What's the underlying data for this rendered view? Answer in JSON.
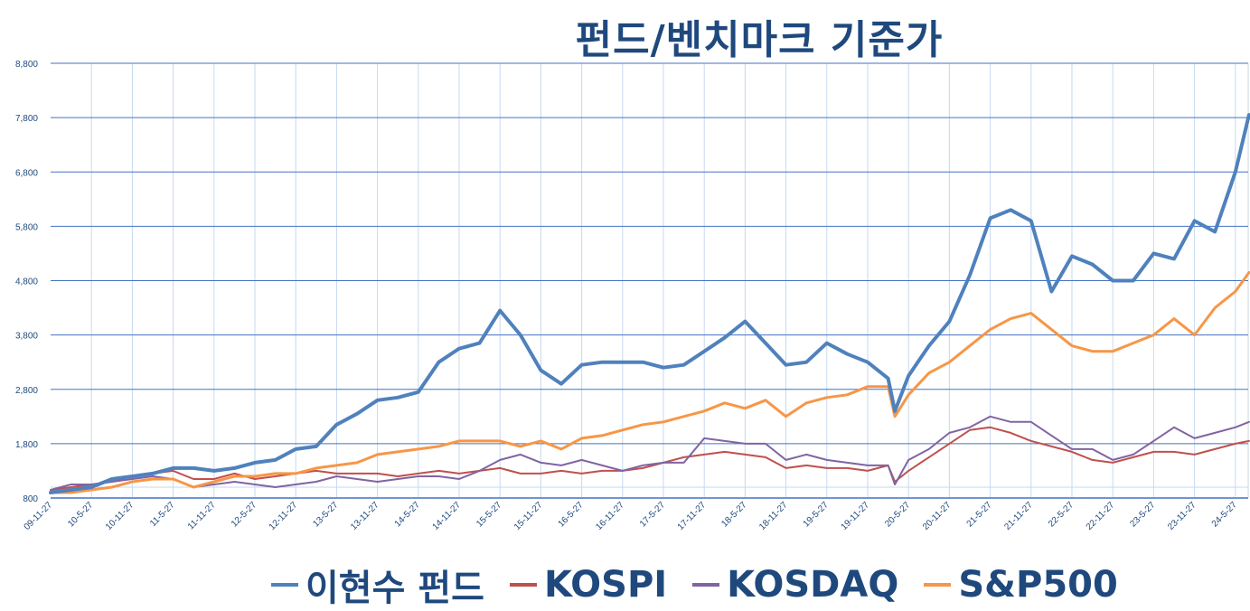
{
  "chart_data": {
    "type": "line",
    "title": "펀드/벤치마크 기준가",
    "xlabel": "",
    "ylabel": "",
    "ylim": [
      800,
      8800
    ],
    "yticks": [
      800,
      1800,
      2800,
      3800,
      4800,
      5800,
      6800,
      7800,
      8800
    ],
    "ytick_labels": [
      "800",
      "1,800",
      "2,800",
      "3,800",
      "4,800",
      "5,800",
      "6,800",
      "7,800",
      "8,800"
    ],
    "xtick_labels": [
      "09-11-27",
      "10-5-27",
      "10-11-27",
      "11-5-27",
      "11-11-27",
      "12-5-27",
      "12-11-27",
      "13-5-27",
      "13-11-27",
      "14-5-27",
      "14-11-27",
      "15-5-27",
      "15-11-27",
      "16-5-27",
      "16-11-27",
      "17-5-27",
      "17-11-27",
      "18-5-27",
      "18-11-27",
      "19-5-27",
      "19-11-27",
      "20-5-27",
      "20-11-27",
      "21-5-27",
      "21-11-27",
      "22-5-27",
      "22-11-27",
      "23-5-27",
      "23-11-27",
      "24-5-27"
    ],
    "grid": true,
    "legend_position": "bottom",
    "x": [
      "2009-11",
      "2010-02",
      "2010-05",
      "2010-08",
      "2010-11",
      "2011-02",
      "2011-05",
      "2011-08",
      "2011-11",
      "2012-02",
      "2012-05",
      "2012-08",
      "2012-11",
      "2013-02",
      "2013-05",
      "2013-08",
      "2013-11",
      "2014-02",
      "2014-05",
      "2014-08",
      "2014-11",
      "2015-02",
      "2015-05",
      "2015-08",
      "2015-11",
      "2016-02",
      "2016-05",
      "2016-08",
      "2016-11",
      "2017-02",
      "2017-05",
      "2017-08",
      "2017-11",
      "2018-02",
      "2018-05",
      "2018-08",
      "2018-11",
      "2019-02",
      "2019-05",
      "2019-08",
      "2019-11",
      "2020-02",
      "2020-03",
      "2020-05",
      "2020-08",
      "2020-11",
      "2021-02",
      "2021-05",
      "2021-08",
      "2021-11",
      "2022-02",
      "2022-05",
      "2022-08",
      "2022-11",
      "2023-02",
      "2023-05",
      "2023-08",
      "2023-11",
      "2024-02",
      "2024-05",
      "2024-07"
    ],
    "series": [
      {
        "name": "이현수 펀드",
        "color": "#4F81BD",
        "width": 4,
        "values": [
          900,
          950,
          1000,
          1150,
          1200,
          1250,
          1350,
          1350,
          1300,
          1350,
          1450,
          1500,
          1700,
          1750,
          2150,
          2350,
          2600,
          2650,
          2750,
          3300,
          3550,
          3650,
          4250,
          3800,
          3150,
          2900,
          3250,
          3300,
          3300,
          3300,
          3200,
          3250,
          3500,
          3750,
          4050,
          3650,
          3250,
          3300,
          3650,
          3450,
          3300,
          3000,
          2400,
          3050,
          3600,
          4050,
          4900,
          5950,
          6100,
          5900,
          4600,
          5250,
          5100,
          4800,
          4800,
          5300,
          5200,
          5900,
          5700,
          6800,
          7850
        ]
      },
      {
        "name": "KOSPI",
        "color": "#C0504D",
        "width": 2,
        "values": [
          950,
          1000,
          1050,
          1100,
          1200,
          1250,
          1300,
          1150,
          1150,
          1250,
          1150,
          1200,
          1250,
          1300,
          1250,
          1250,
          1250,
          1200,
          1250,
          1300,
          1250,
          1300,
          1350,
          1250,
          1250,
          1300,
          1250,
          1300,
          1300,
          1350,
          1450,
          1550,
          1600,
          1650,
          1600,
          1550,
          1350,
          1400,
          1350,
          1350,
          1300,
          1400,
          1100,
          1300,
          1550,
          1800,
          2050,
          2100,
          2000,
          1850,
          1750,
          1650,
          1500,
          1450,
          1550,
          1650,
          1650,
          1600,
          1700,
          1800,
          1850
        ]
      },
      {
        "name": "KOSDAQ",
        "color": "#8064A2",
        "width": 2,
        "values": [
          950,
          1050,
          1050,
          1100,
          1150,
          1200,
          1150,
          1000,
          1050,
          1100,
          1050,
          1000,
          1050,
          1100,
          1200,
          1150,
          1100,
          1150,
          1200,
          1200,
          1150,
          1300,
          1500,
          1600,
          1450,
          1400,
          1500,
          1400,
          1300,
          1400,
          1450,
          1450,
          1900,
          1850,
          1800,
          1800,
          1500,
          1600,
          1500,
          1450,
          1400,
          1400,
          1050,
          1500,
          1700,
          2000,
          2100,
          2300,
          2200,
          2200,
          1950,
          1700,
          1700,
          1500,
          1600,
          1850,
          2100,
          1900,
          2000,
          2100,
          2200
        ]
      },
      {
        "name": "S&P500",
        "color": "#F79646",
        "width": 3,
        "values": [
          900,
          900,
          950,
          1000,
          1100,
          1150,
          1150,
          1000,
          1100,
          1200,
          1200,
          1250,
          1250,
          1350,
          1400,
          1450,
          1600,
          1650,
          1700,
          1750,
          1850,
          1850,
          1850,
          1750,
          1850,
          1700,
          1900,
          1950,
          2050,
          2150,
          2200,
          2300,
          2400,
          2550,
          2450,
          2600,
          2300,
          2550,
          2650,
          2700,
          2850,
          2850,
          2300,
          2700,
          3100,
          3300,
          3600,
          3900,
          4100,
          4200,
          3900,
          3600,
          3500,
          3500,
          3650,
          3800,
          4100,
          3800,
          4300,
          4600,
          4950
        ]
      }
    ],
    "legend": [
      "이현수 펀드",
      "KOSPI",
      "KOSDAQ",
      "S&P500"
    ],
    "axis_color": "#4472C4",
    "text_color": "#1F497D"
  }
}
